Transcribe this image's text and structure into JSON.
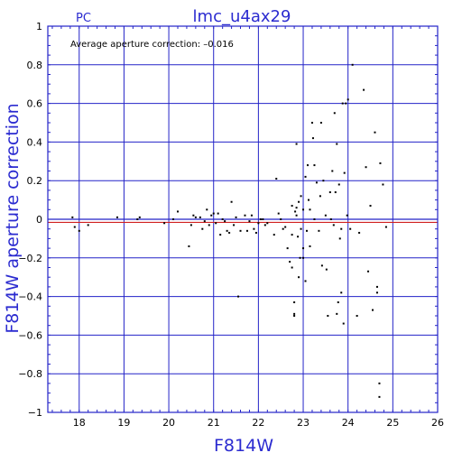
{
  "chart_data": {
    "type": "scatter",
    "corner_label": "PC",
    "title": "lmc_u4ax29",
    "xlabel": "F814W",
    "ylabel": "F814W aperture correction",
    "annotation": "Average aperture correction: –0.016",
    "xlim": [
      17.3,
      26
    ],
    "ylim": [
      -1,
      1
    ],
    "x_ticks": [
      "18",
      "19",
      "20",
      "21",
      "22",
      "23",
      "24",
      "25",
      "26"
    ],
    "y_ticks": [
      "1",
      "0.8",
      "0.6",
      "0.4",
      "0.2",
      "0",
      "−0.2",
      "−0.4",
      "−0.6",
      "−0.8",
      "−1"
    ],
    "grid": true,
    "reference_lines": [
      {
        "y": 0,
        "color": "#2323c8"
      },
      {
        "y": -0.016,
        "color": "#d02020"
      }
    ],
    "colors": {
      "grid": "#2323c8",
      "points": "#000000",
      "labels": "#2b2bd0"
    },
    "points": [
      [
        17.85,
        0.01
      ],
      [
        17.9,
        -0.04
      ],
      [
        18.0,
        -0.06
      ],
      [
        18.2,
        -0.03
      ],
      [
        18.85,
        0.01
      ],
      [
        19.3,
        0.0
      ],
      [
        19.35,
        0.01
      ],
      [
        19.9,
        -0.02
      ],
      [
        20.1,
        0.0
      ],
      [
        20.2,
        0.04
      ],
      [
        20.45,
        -0.14
      ],
      [
        20.5,
        -0.03
      ],
      [
        20.55,
        0.02
      ],
      [
        20.6,
        0.01
      ],
      [
        20.7,
        0.01
      ],
      [
        20.75,
        -0.05
      ],
      [
        20.8,
        -0.01
      ],
      [
        20.85,
        0.05
      ],
      [
        20.9,
        -0.03
      ],
      [
        20.95,
        0.02
      ],
      [
        21.0,
        0.03
      ],
      [
        21.05,
        -0.02
      ],
      [
        21.1,
        0.03
      ],
      [
        21.15,
        -0.08
      ],
      [
        21.2,
        0.0
      ],
      [
        21.25,
        -0.01
      ],
      [
        21.3,
        -0.06
      ],
      [
        21.35,
        -0.07
      ],
      [
        21.4,
        0.09
      ],
      [
        21.45,
        -0.03
      ],
      [
        21.5,
        0.01
      ],
      [
        21.55,
        -0.4
      ],
      [
        21.6,
        -0.06
      ],
      [
        21.7,
        0.02
      ],
      [
        21.75,
        -0.06
      ],
      [
        21.8,
        -0.01
      ],
      [
        21.85,
        0.02
      ],
      [
        21.9,
        -0.05
      ],
      [
        21.95,
        -0.07
      ],
      [
        22.0,
        -0.02
      ],
      [
        22.05,
        0.0
      ],
      [
        22.1,
        0.0
      ],
      [
        22.15,
        -0.03
      ],
      [
        22.2,
        -0.02
      ],
      [
        22.35,
        -0.08
      ],
      [
        22.4,
        0.21
      ],
      [
        22.45,
        0.03
      ],
      [
        22.5,
        0.0
      ],
      [
        22.55,
        -0.05
      ],
      [
        22.6,
        -0.04
      ],
      [
        22.65,
        -0.15
      ],
      [
        22.7,
        -0.22
      ],
      [
        22.75,
        -0.08
      ],
      [
        22.75,
        0.07
      ],
      [
        22.75,
        -0.25
      ],
      [
        22.8,
        -0.49
      ],
      [
        22.8,
        -0.5
      ],
      [
        22.8,
        -0.43
      ],
      [
        22.82,
        0.04
      ],
      [
        22.85,
        0.39
      ],
      [
        22.85,
        0.06
      ],
      [
        22.85,
        0.02
      ],
      [
        22.88,
        -0.09
      ],
      [
        22.9,
        -0.3
      ],
      [
        22.9,
        0.09
      ],
      [
        22.93,
        -0.2
      ],
      [
        22.95,
        0.12
      ],
      [
        22.95,
        -0.05
      ],
      [
        23.0,
        -0.15
      ],
      [
        23.0,
        -0.2
      ],
      [
        23.0,
        0.05
      ],
      [
        23.05,
        -0.32
      ],
      [
        23.05,
        0.22
      ],
      [
        23.08,
        -0.06
      ],
      [
        23.1,
        0.28
      ],
      [
        23.12,
        0.1
      ],
      [
        23.15,
        -0.14
      ],
      [
        23.15,
        0.05
      ],
      [
        23.2,
        0.5
      ],
      [
        23.22,
        0.42
      ],
      [
        23.25,
        0.0
      ],
      [
        23.25,
        0.28
      ],
      [
        23.3,
        0.19
      ],
      [
        23.35,
        -0.06
      ],
      [
        23.38,
        0.12
      ],
      [
        23.4,
        0.5
      ],
      [
        23.42,
        -0.24
      ],
      [
        23.45,
        0.2
      ],
      [
        23.5,
        0.02
      ],
      [
        23.52,
        -0.26
      ],
      [
        23.55,
        -0.5
      ],
      [
        23.6,
        0.14
      ],
      [
        23.62,
        0.0
      ],
      [
        23.65,
        0.25
      ],
      [
        23.68,
        -0.03
      ],
      [
        23.7,
        0.55
      ],
      [
        23.72,
        0.14
      ],
      [
        23.75,
        0.39
      ],
      [
        23.75,
        -0.49
      ],
      [
        23.78,
        -0.43
      ],
      [
        23.8,
        0.18
      ],
      [
        23.82,
        -0.1
      ],
      [
        23.85,
        -0.05
      ],
      [
        23.85,
        -0.38
      ],
      [
        23.88,
        0.6
      ],
      [
        23.9,
        -0.54
      ],
      [
        23.92,
        0.24
      ],
      [
        23.95,
        0.6
      ],
      [
        23.98,
        0.02
      ],
      [
        24.0,
        0.62
      ],
      [
        24.05,
        -0.05
      ],
      [
        24.1,
        0.8
      ],
      [
        24.2,
        -0.5
      ],
      [
        24.25,
        -0.07
      ],
      [
        24.35,
        0.67
      ],
      [
        24.4,
        0.27
      ],
      [
        24.45,
        -0.27
      ],
      [
        24.5,
        0.07
      ],
      [
        24.55,
        -0.47
      ],
      [
        24.6,
        0.45
      ],
      [
        24.65,
        -0.35
      ],
      [
        24.65,
        -0.38
      ],
      [
        24.7,
        -0.85
      ],
      [
        24.7,
        -0.92
      ],
      [
        24.72,
        0.29
      ],
      [
        24.78,
        0.18
      ],
      [
        24.85,
        -0.04
      ]
    ]
  }
}
